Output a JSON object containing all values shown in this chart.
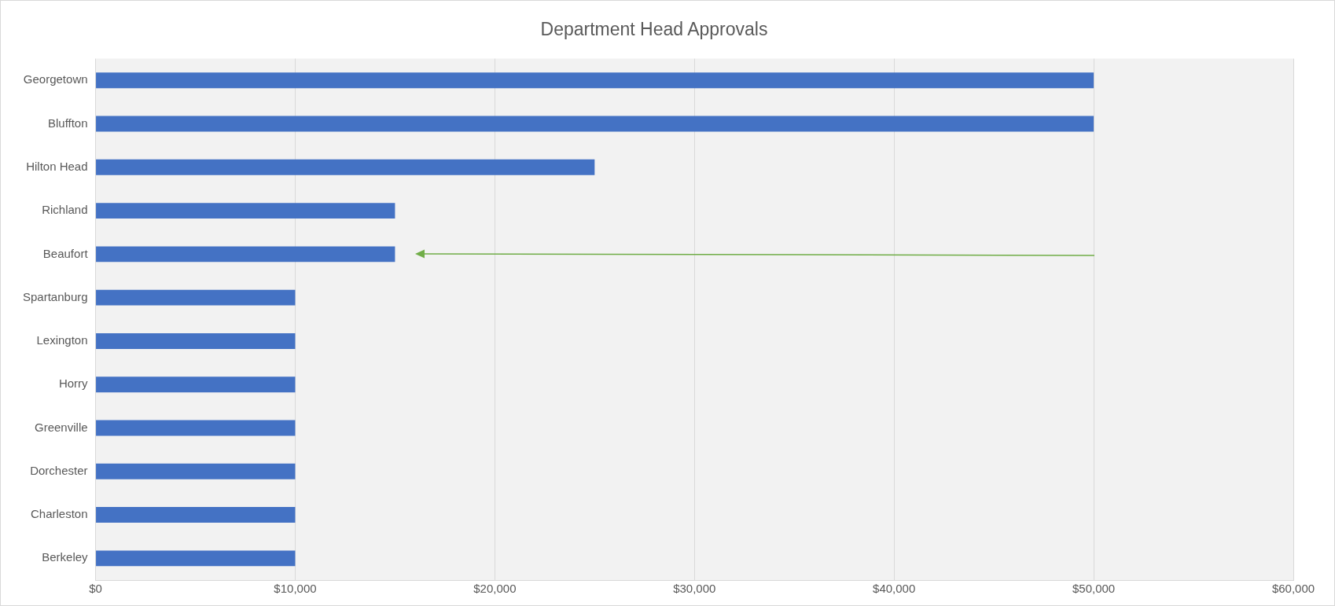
{
  "chart_data": {
    "type": "bar",
    "orientation": "horizontal",
    "title": "Department Head Approvals",
    "categories": [
      "Georgetown",
      "Bluffton",
      "Hilton Head",
      "Richland",
      "Beaufort",
      "Spartanburg",
      "Lexington",
      "Horry",
      "Greenville",
      "Dorchester",
      "Charleston",
      "Berkeley"
    ],
    "values": [
      50000,
      50000,
      25000,
      15000,
      15000,
      10000,
      10000,
      10000,
      10000,
      10000,
      10000,
      10000
    ],
    "color": "#4472c4",
    "xlim": [
      0,
      60000
    ],
    "xticks": [
      {
        "value": 0,
        "label": "$0"
      },
      {
        "value": 10000,
        "label": "$10,000"
      },
      {
        "value": 20000,
        "label": "$20,000"
      },
      {
        "value": 30000,
        "label": "$30,000"
      },
      {
        "value": 40000,
        "label": "$40,000"
      },
      {
        "value": 50000,
        "label": "$50,000"
      },
      {
        "value": 60000,
        "label": "$60,000"
      }
    ],
    "grid": "x",
    "legend": false
  }
}
